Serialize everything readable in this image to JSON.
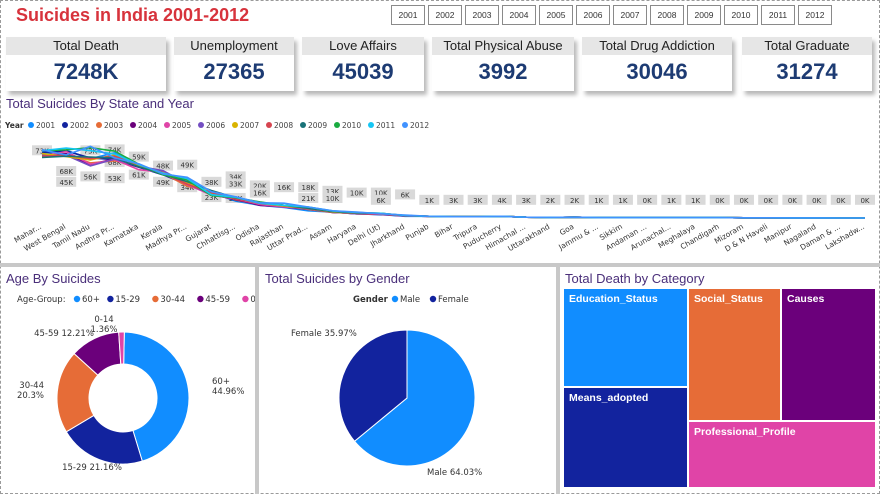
{
  "title": "Suicides in India 2001-2012",
  "year_filter": [
    "2001",
    "2002",
    "2003",
    "2004",
    "2005",
    "2006",
    "2007",
    "2008",
    "2009",
    "2010",
    "2011",
    "2012"
  ],
  "kpis": [
    {
      "label": "Total Death",
      "value": "7248K"
    },
    {
      "label": "Unemployment",
      "value": "27365"
    },
    {
      "label": "Love Affairs",
      "value": "45039"
    },
    {
      "label": "Total Physical Abuse",
      "value": "3992"
    },
    {
      "label": "Total Drug Addiction",
      "value": "30046"
    },
    {
      "label": "Total Graduate",
      "value": "31274"
    }
  ],
  "colors": {
    "accent": "#d7333c",
    "kpi_value": "#1d3b73",
    "section_title": "#4a2f7a"
  },
  "chart_data": [
    {
      "type": "line",
      "title": "Total Suicides By State and Year",
      "legend_title": "Year",
      "legend_position": "top-left",
      "categories": [
        "Mahar...",
        "West Bengal",
        "Tamil Nadu",
        "Andhra Pr...",
        "Karnataka",
        "Kerala",
        "Madhya Pr...",
        "Gujarat",
        "Chhattisg...",
        "Odisha",
        "Rajasthan",
        "Uttar Prad...",
        "Assam",
        "Haryana",
        "Delhi (Ut)",
        "Jharkhand",
        "Punjab",
        "Bihar",
        "Tripura",
        "Puducherry",
        "Himachal ...",
        "Uttarakhand",
        "Goa",
        "Jammu & ...",
        "Sikkim",
        "Andaman ...",
        "Arunachal...",
        "Meghalaya",
        "Chandigarh",
        "Mizoram",
        "D & N Haveli",
        "Manipur",
        "Nagaland",
        "Daman & ...",
        "Lakshadw..."
      ],
      "series": [
        {
          "name": "2001",
          "color": "#118dff",
          "values": [
            15.1,
            16.0,
            14.0,
            15.4,
            12.3,
            10.4,
            8.0,
            6.0,
            4.0,
            3.0,
            2.5,
            1.7,
            1.4,
            1.0,
            0.8,
            0.4,
            0.4,
            0.4,
            0.3,
            0.4,
            0.2,
            0.15,
            0.2,
            0.1,
            0.1,
            0.1,
            0.1,
            0.1,
            0.1,
            0.05,
            0.05,
            0.03,
            0.02,
            0.01,
            0.0
          ]
        },
        {
          "name": "2002",
          "color": "#12239e",
          "values": [
            15.5,
            15.8,
            14.2,
            13.8,
            12.0,
            10.2,
            7.9,
            5.8,
            4.2,
            3.3,
            2.6,
            2.0,
            1.4,
            1.0,
            0.8,
            0.5,
            0.4,
            0.3,
            0.3,
            0.4,
            0.2,
            0.15,
            0.2,
            0.1,
            0.1,
            0.1,
            0.1,
            0.1,
            0.1,
            0.05,
            0.05,
            0.03,
            0.02,
            0.01,
            0.0
          ]
        },
        {
          "name": "2003",
          "color": "#e66c37",
          "values": [
            14.8,
            15.0,
            13.0,
            13.5,
            12.5,
            10.6,
            7.5,
            6.2,
            4.3,
            3.1,
            2.8,
            2.0,
            1.3,
            1.1,
            0.9,
            0.5,
            0.4,
            0.3,
            0.3,
            0.4,
            0.2,
            0.15,
            0.2,
            0.1,
            0.1,
            0.1,
            0.1,
            0.1,
            0.1,
            0.05,
            0.05,
            0.03,
            0.02,
            0.01,
            0.0
          ]
        },
        {
          "name": "2004",
          "color": "#6b007b",
          "values": [
            15.0,
            15.2,
            12.6,
            14.0,
            12.1,
            11.0,
            8.0,
            5.5,
            4.4,
            3.0,
            2.6,
            2.2,
            1.3,
            1.1,
            0.9,
            0.5,
            0.4,
            0.3,
            0.3,
            0.4,
            0.2,
            0.15,
            0.2,
            0.1,
            0.1,
            0.1,
            0.1,
            0.1,
            0.1,
            0.05,
            0.05,
            0.03,
            0.02,
            0.01,
            0.0
          ]
        },
        {
          "name": "2005",
          "color": "#e044a7",
          "values": [
            14.5,
            15.7,
            12.7,
            13.8,
            11.4,
            10.8,
            7.9,
            5.4,
            4.5,
            3.2,
            2.6,
            2.2,
            1.4,
            1.0,
            0.9,
            0.5,
            0.4,
            0.3,
            0.3,
            0.4,
            0.2,
            0.15,
            0.2,
            0.1,
            0.1,
            0.1,
            0.1,
            0.1,
            0.1,
            0.05,
            0.05,
            0.03,
            0.02,
            0.01,
            0.0
          ]
        },
        {
          "name": "2006",
          "color": "#744ec2",
          "values": [
            15.0,
            14.8,
            12.3,
            13.9,
            12.2,
            11.2,
            8.1,
            5.6,
            4.6,
            3.4,
            2.8,
            2.2,
            1.4,
            1.0,
            1.0,
            0.5,
            0.4,
            0.3,
            0.3,
            0.4,
            0.2,
            0.15,
            0.2,
            0.1,
            0.1,
            0.1,
            0.1,
            0.1,
            0.1,
            0.05,
            0.05,
            0.03,
            0.02,
            0.01,
            0.0
          ]
        },
        {
          "name": "2007",
          "color": "#d9b300",
          "values": [
            15.2,
            14.5,
            13.7,
            14.9,
            12.3,
            10.7,
            8.4,
            5.9,
            4.6,
            3.5,
            2.8,
            2.3,
            1.4,
            1.1,
            1.0,
            0.6,
            0.4,
            0.3,
            0.3,
            0.4,
            0.2,
            0.15,
            0.2,
            0.1,
            0.1,
            0.1,
            0.1,
            0.1,
            0.1,
            0.05,
            0.05,
            0.03,
            0.02,
            0.01,
            0.0
          ]
        },
        {
          "name": "2008",
          "color": "#d64550",
          "values": [
            14.6,
            14.8,
            14.0,
            14.6,
            12.6,
            10.6,
            8.0,
            6.0,
            4.5,
            3.6,
            3.0,
            2.4,
            1.5,
            1.1,
            1.0,
            0.6,
            0.4,
            0.3,
            0.3,
            0.4,
            0.2,
            0.15,
            0.2,
            0.1,
            0.1,
            0.1,
            0.1,
            0.1,
            0.1,
            0.05,
            0.05,
            0.03,
            0.02,
            0.01,
            0.0
          ]
        },
        {
          "name": "2009",
          "color": "#197278",
          "values": [
            14.3,
            14.6,
            14.4,
            14.2,
            12.1,
            10.3,
            8.6,
            6.5,
            4.8,
            3.7,
            3.0,
            2.3,
            1.5,
            1.2,
            1.1,
            0.6,
            0.4,
            0.3,
            0.3,
            0.4,
            0.2,
            0.15,
            0.2,
            0.1,
            0.1,
            0.1,
            0.1,
            0.1,
            0.1,
            0.05,
            0.05,
            0.03,
            0.02,
            0.01,
            0.0
          ]
        },
        {
          "name": "2010",
          "color": "#1aab40",
          "values": [
            15.9,
            16.1,
            16.6,
            15.8,
            12.7,
            10.2,
            9.0,
            5.3,
            4.8,
            3.8,
            3.0,
            2.6,
            1.6,
            1.3,
            1.1,
            0.6,
            0.4,
            0.3,
            0.3,
            0.4,
            0.2,
            0.15,
            0.2,
            0.1,
            0.1,
            0.1,
            0.1,
            0.1,
            0.1,
            0.05,
            0.05,
            0.03,
            0.02,
            0.01,
            0.0
          ]
        },
        {
          "name": "2011",
          "color": "#15c6f4",
          "values": [
            15.9,
            16.5,
            15.9,
            15.1,
            12.6,
            10.6,
            9.3,
            5.5,
            4.9,
            3.5,
            3.0,
            2.6,
            1.7,
            1.3,
            1.1,
            0.6,
            0.4,
            0.3,
            0.3,
            0.4,
            0.2,
            0.15,
            0.2,
            0.1,
            0.1,
            0.1,
            0.1,
            0.1,
            0.1,
            0.05,
            0.05,
            0.03,
            0.02,
            0.01,
            0.0
          ]
        },
        {
          "name": "2012",
          "color": "#4092ff",
          "values": [
            16.1,
            14.9,
            16.9,
            14.2,
            12.8,
            10.4,
            9.6,
            6.2,
            5.0,
            3.6,
            3.5,
            2.6,
            1.7,
            1.4,
            1.0,
            0.7,
            0.4,
            0.3,
            0.3,
            0.4,
            0.2,
            0.15,
            0.2,
            0.1,
            0.1,
            0.1,
            0.1,
            0.1,
            0.1,
            0.05,
            0.05,
            0.03,
            0.02,
            0.01,
            0.0
          ]
        }
      ],
      "data_labels": [
        {
          "text": "73K",
          "cat": 0,
          "y": 73
        },
        {
          "text": "68K",
          "cat": 1,
          "y": 50
        },
        {
          "text": "45K",
          "cat": 1,
          "y": 38
        },
        {
          "text": "73K",
          "cat": 2,
          "y": 73
        },
        {
          "text": "56K",
          "cat": 2,
          "y": 44
        },
        {
          "text": "74K",
          "cat": 3,
          "y": 74
        },
        {
          "text": "68K",
          "cat": 3,
          "y": 60
        },
        {
          "text": "53K",
          "cat": 3,
          "y": 42
        },
        {
          "text": "59K",
          "cat": 4,
          "y": 66
        },
        {
          "text": "61K",
          "cat": 4,
          "y": 46
        },
        {
          "text": "48K",
          "cat": 5,
          "y": 56
        },
        {
          "text": "49K",
          "cat": 5,
          "y": 38
        },
        {
          "text": "49K",
          "cat": 6,
          "y": 57
        },
        {
          "text": "34K",
          "cat": 6,
          "y": 32
        },
        {
          "text": "38K",
          "cat": 7,
          "y": 38
        },
        {
          "text": "23K",
          "cat": 7,
          "y": 21
        },
        {
          "text": "34K",
          "cat": 8,
          "y": 44
        },
        {
          "text": "33K",
          "cat": 8,
          "y": 36
        },
        {
          "text": "20K",
          "cat": 8,
          "y": 20
        },
        {
          "text": "20K",
          "cat": 9,
          "y": 34
        },
        {
          "text": "16K",
          "cat": 9,
          "y": 26
        },
        {
          "text": "16K",
          "cat": 10,
          "y": 32
        },
        {
          "text": "18K",
          "cat": 11,
          "y": 32
        },
        {
          "text": "21K",
          "cat": 11,
          "y": 20
        },
        {
          "text": "13K",
          "cat": 12,
          "y": 28
        },
        {
          "text": "10K",
          "cat": 12,
          "y": 20
        },
        {
          "text": "10K",
          "cat": 13,
          "y": 26
        },
        {
          "text": "10K",
          "cat": 14,
          "y": 26
        },
        {
          "text": "6K",
          "cat": 14,
          "y": 18
        },
        {
          "text": "6K",
          "cat": 15,
          "y": 24
        },
        {
          "text": "1K",
          "cat": 16,
          "y": 18
        },
        {
          "text": "3K",
          "cat": 17,
          "y": 18
        },
        {
          "text": "3K",
          "cat": 18,
          "y": 18
        },
        {
          "text": "4K",
          "cat": 19,
          "y": 18
        },
        {
          "text": "3K",
          "cat": 20,
          "y": 18
        },
        {
          "text": "2K",
          "cat": 21,
          "y": 18
        },
        {
          "text": "2K",
          "cat": 22,
          "y": 18
        },
        {
          "text": "1K",
          "cat": 23,
          "y": 18
        },
        {
          "text": "1K",
          "cat": 24,
          "y": 18
        },
        {
          "text": "0K",
          "cat": 25,
          "y": 18
        },
        {
          "text": "1K",
          "cat": 26,
          "y": 18
        },
        {
          "text": "1K",
          "cat": 27,
          "y": 18
        },
        {
          "text": "0K",
          "cat": 28,
          "y": 18
        },
        {
          "text": "0K",
          "cat": 29,
          "y": 18
        },
        {
          "text": "0K",
          "cat": 30,
          "y": 18
        },
        {
          "text": "0K",
          "cat": 31,
          "y": 18
        },
        {
          "text": "0K",
          "cat": 32,
          "y": 18
        },
        {
          "text": "0K",
          "cat": 33,
          "y": 18
        },
        {
          "text": "0K",
          "cat": 34,
          "y": 18
        }
      ],
      "grid": false
    },
    {
      "type": "pie",
      "variant": "donut",
      "title": "Age By Suicides",
      "legend_title": "Age-Group:",
      "legend_position": "top",
      "slices": [
        {
          "label": "60+",
          "value": 44.96,
          "text": "60+\n44.96%",
          "color": "#118dff"
        },
        {
          "label": "15-29",
          "value": 21.16,
          "text": "15-29 21.16%",
          "color": "#12239e"
        },
        {
          "label": "30-44",
          "value": 20.3,
          "text": "30-44\n20.3%",
          "color": "#e66c37"
        },
        {
          "label": "45-59",
          "value": 12.21,
          "text": "45-59 12.21%",
          "color": "#6b007b"
        },
        {
          "label": "0-14",
          "value": 1.36,
          "text": "0-14\n1.36%",
          "color": "#e044a7"
        }
      ]
    },
    {
      "type": "pie",
      "title": "Total Suicides by Gender",
      "legend_title": "Gender",
      "legend_position": "top",
      "slices": [
        {
          "label": "Male",
          "value": 64.03,
          "text": "Male 64.03%",
          "color": "#118dff"
        },
        {
          "label": "Female",
          "value": 35.97,
          "text": "Female 35.97%",
          "color": "#12239e"
        }
      ]
    },
    {
      "type": "treemap",
      "title": "Total Death by Category",
      "items": [
        {
          "label": "Education_Status",
          "color": "#118dff"
        },
        {
          "label": "Means_adopted",
          "color": "#12239e"
        },
        {
          "label": "Social_Status",
          "color": "#e66c37"
        },
        {
          "label": "Causes",
          "color": "#6b007b"
        },
        {
          "label": "Professional_Profile",
          "color": "#e044a7"
        }
      ]
    }
  ]
}
